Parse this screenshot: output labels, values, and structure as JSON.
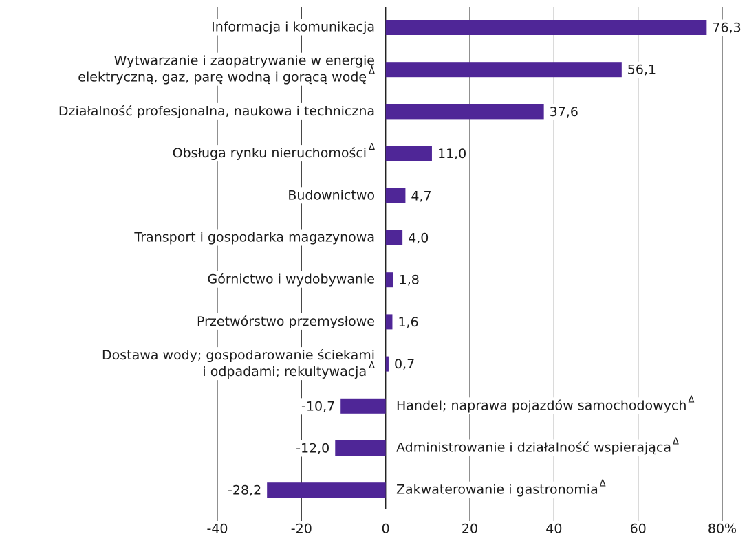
{
  "chart_data": {
    "type": "bar",
    "orientation": "horizontal",
    "color": "#4f2697",
    "grid": true,
    "categories": [
      [
        "Informacja i komunikacja"
      ],
      [
        "Wytwarzanie i zaopatrywanie w energię",
        "elektryczną, gaz, parę wodną i gorącą wodę"
      ],
      [
        "Działalność profesjonalna, naukowa i techniczna"
      ],
      [
        "Obsługa rynku nieruchomości"
      ],
      [
        "Budownictwo"
      ],
      [
        "Transport i gospodarka magazynowa"
      ],
      [
        "Górnictwo i wydobywanie"
      ],
      [
        "Przetwórstwo przemysłowe"
      ],
      [
        "Dostawa wody; gospodarowanie ściekami",
        "i odpadami; rekultywacja"
      ],
      [
        "Handel; naprawa pojazdów samochodowych"
      ],
      [
        "Administrowanie i działalność wspierająca"
      ],
      [
        "Zakwaterowanie i gastronomia"
      ]
    ],
    "category_marks": [
      null,
      "Δ",
      null,
      "Δ",
      null,
      null,
      null,
      null,
      "Δ",
      "Δ",
      "Δ",
      "Δ"
    ],
    "values": [
      76.3,
      56.1,
      37.6,
      11.0,
      4.7,
      4.0,
      1.8,
      1.6,
      0.7,
      -10.7,
      -12.0,
      -28.2
    ],
    "value_labels": [
      "76,3",
      "56,1",
      "37,6",
      "11,0",
      "4,7",
      "4,0",
      "1,8",
      "1,6",
      "0,7",
      "-10,7",
      "-12,0",
      "-28,2"
    ],
    "xlim": [
      -40,
      80
    ],
    "xticks": [
      -40,
      -20,
      0,
      20,
      40,
      60,
      {
        "value": 80,
        "label": "80%"
      }
    ]
  }
}
